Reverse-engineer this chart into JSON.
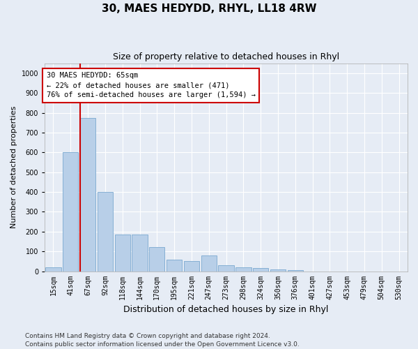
{
  "title": "30, MAES HEDYDD, RHYL, LL18 4RW",
  "subtitle": "Size of property relative to detached houses in Rhyl",
  "xlabel": "Distribution of detached houses by size in Rhyl",
  "ylabel": "Number of detached properties",
  "categories": [
    "15sqm",
    "41sqm",
    "67sqm",
    "92sqm",
    "118sqm",
    "144sqm",
    "170sqm",
    "195sqm",
    "221sqm",
    "247sqm",
    "273sqm",
    "298sqm",
    "324sqm",
    "350sqm",
    "376sqm",
    "401sqm",
    "427sqm",
    "453sqm",
    "479sqm",
    "504sqm",
    "530sqm"
  ],
  "values": [
    20,
    600,
    775,
    400,
    185,
    185,
    120,
    60,
    50,
    80,
    30,
    20,
    15,
    10,
    5,
    0,
    0,
    0,
    0,
    0,
    0
  ],
  "bar_color": "#b8cfe8",
  "bar_edge_color": "#7aa8d0",
  "marker_index": 2,
  "marker_line_color": "#cc0000",
  "annotation_text": "30 MAES HEDYDD: 65sqm\n← 22% of detached houses are smaller (471)\n76% of semi-detached houses are larger (1,594) →",
  "annotation_box_facecolor": "#ffffff",
  "annotation_box_edgecolor": "#cc0000",
  "ylim": [
    0,
    1050
  ],
  "yticks": [
    0,
    100,
    200,
    300,
    400,
    500,
    600,
    700,
    800,
    900,
    1000
  ],
  "footer": "Contains HM Land Registry data © Crown copyright and database right 2024.\nContains public sector information licensed under the Open Government Licence v3.0.",
  "bg_color": "#e6ecf5",
  "grid_color": "#ffffff",
  "title_fontsize": 11,
  "subtitle_fontsize": 9,
  "ylabel_fontsize": 8,
  "xlabel_fontsize": 9,
  "tick_fontsize": 7,
  "footer_fontsize": 6.5,
  "annot_fontsize": 7.5
}
